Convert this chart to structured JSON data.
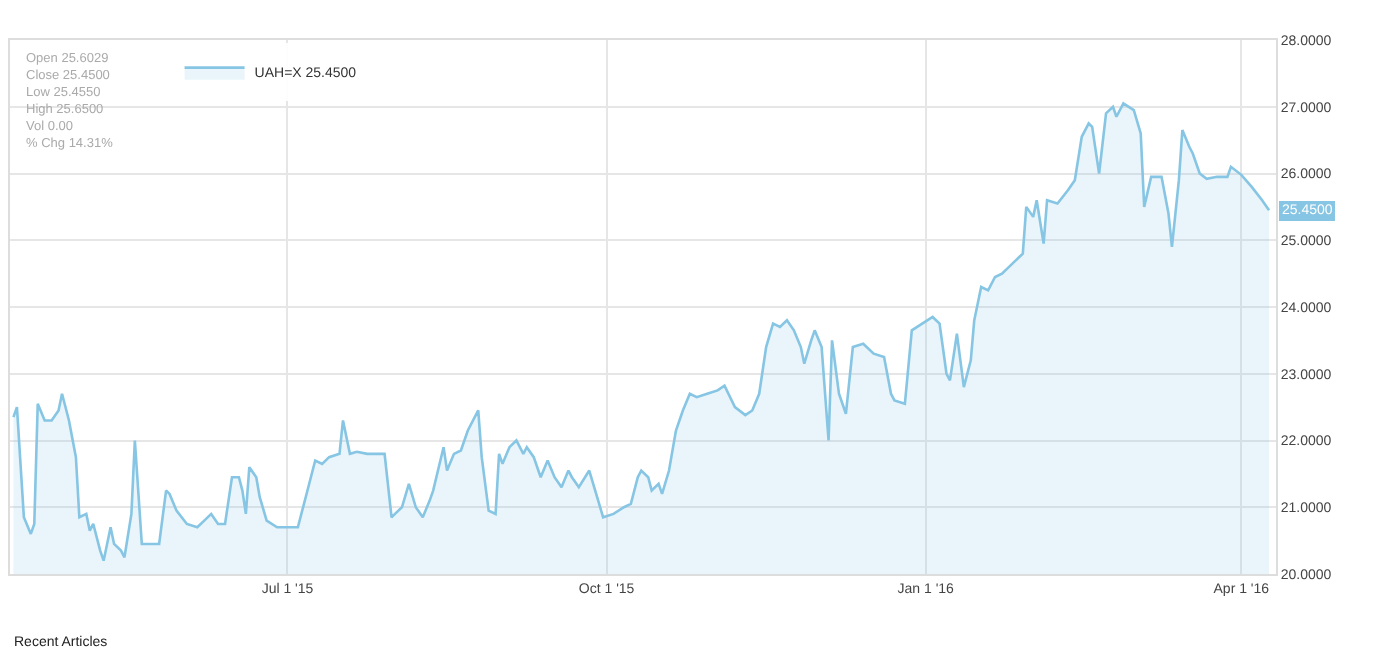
{
  "chart_data": {
    "type": "area",
    "x": [
      "2015-04-13",
      "2015-04-14",
      "2015-04-16",
      "2015-04-18",
      "2015-04-19",
      "2015-04-20",
      "2015-04-22",
      "2015-04-24",
      "2015-04-26",
      "2015-04-27",
      "2015-04-29",
      "2015-05-01",
      "2015-05-02",
      "2015-05-04",
      "2015-05-05",
      "2015-05-06",
      "2015-05-08",
      "2015-05-09",
      "2015-05-11",
      "2015-05-12",
      "2015-05-14",
      "2015-05-15",
      "2015-05-17",
      "2015-05-18",
      "2015-05-20",
      "2015-05-23",
      "2015-05-25",
      "2015-05-27",
      "2015-05-28",
      "2015-05-30",
      "2015-06-02",
      "2015-06-05",
      "2015-06-07",
      "2015-06-09",
      "2015-06-11",
      "2015-06-13",
      "2015-06-15",
      "2015-06-17",
      "2015-06-18",
      "2015-06-19",
      "2015-06-20",
      "2015-06-22",
      "2015-06-23",
      "2015-06-25",
      "2015-06-28",
      "2015-07-02",
      "2015-07-04",
      "2015-07-06",
      "2015-07-07",
      "2015-07-09",
      "2015-07-11",
      "2015-07-13",
      "2015-07-16",
      "2015-07-17",
      "2015-07-19",
      "2015-07-21",
      "2015-07-24",
      "2015-07-29",
      "2015-07-31",
      "2015-08-01",
      "2015-08-03",
      "2015-08-05",
      "2015-08-07",
      "2015-08-09",
      "2015-08-11",
      "2015-08-12",
      "2015-08-15",
      "2015-08-16",
      "2015-08-18",
      "2015-08-20",
      "2015-08-22",
      "2015-08-25",
      "2015-08-26",
      "2015-08-28",
      "2015-08-30",
      "2015-08-31",
      "2015-09-01",
      "2015-09-03",
      "2015-09-05",
      "2015-09-07",
      "2015-09-08",
      "2015-09-10",
      "2015-09-12",
      "2015-09-14",
      "2015-09-16",
      "2015-09-18",
      "2015-09-20",
      "2015-09-21",
      "2015-09-23",
      "2015-09-26",
      "2015-09-28",
      "2015-09-30",
      "2015-10-03",
      "2015-10-06",
      "2015-10-08",
      "2015-10-10",
      "2015-10-11",
      "2015-10-13",
      "2015-10-14",
      "2015-10-16",
      "2015-10-17",
      "2015-10-19",
      "2015-10-20",
      "2015-10-21",
      "2015-10-23",
      "2015-10-25",
      "2015-10-27",
      "2015-10-30",
      "2015-11-02",
      "2015-11-04",
      "2015-11-07",
      "2015-11-10",
      "2015-11-12",
      "2015-11-14",
      "2015-11-16",
      "2015-11-18",
      "2015-11-20",
      "2015-11-22",
      "2015-11-24",
      "2015-11-26",
      "2015-11-27",
      "2015-11-29",
      "2015-11-30",
      "2015-12-02",
      "2015-12-04",
      "2015-12-05",
      "2015-12-07",
      "2015-12-09",
      "2015-12-11",
      "2015-12-14",
      "2015-12-17",
      "2015-12-20",
      "2015-12-22",
      "2015-12-23",
      "2015-12-26",
      "2015-12-28",
      "2015-12-31",
      "2016-01-03",
      "2016-01-05",
      "2016-01-07",
      "2016-01-08",
      "2016-01-10",
      "2016-01-12",
      "2016-01-14",
      "2016-01-15",
      "2016-01-17",
      "2016-01-19",
      "2016-01-21",
      "2016-01-23",
      "2016-01-26",
      "2016-01-29",
      "2016-01-30",
      "2016-02-01",
      "2016-02-02",
      "2016-02-04",
      "2016-02-05",
      "2016-02-08",
      "2016-02-11",
      "2016-02-13",
      "2016-02-15",
      "2016-02-17",
      "2016-02-18",
      "2016-02-20",
      "2016-02-22",
      "2016-02-24",
      "2016-02-25",
      "2016-02-27",
      "2016-03-01",
      "2016-03-03",
      "2016-03-04",
      "2016-03-06",
      "2016-03-09",
      "2016-03-11",
      "2016-03-12",
      "2016-03-14",
      "2016-03-15",
      "2016-03-17",
      "2016-03-18",
      "2016-03-20",
      "2016-03-22",
      "2016-03-25",
      "2016-03-28",
      "2016-03-29",
      "2016-04-01",
      "2016-04-04",
      "2016-04-07",
      "2016-04-09"
    ],
    "series": [
      {
        "name": "UAH=X 25.4500",
        "color": "#86c5e3",
        "values": [
          22.35,
          22.5,
          20.85,
          20.6,
          20.75,
          22.55,
          22.3,
          22.3,
          22.45,
          22.7,
          22.3,
          21.75,
          20.85,
          20.9,
          20.65,
          20.75,
          20.35,
          20.2,
          20.7,
          20.45,
          20.35,
          20.25,
          20.9,
          22.0,
          20.45,
          20.45,
          20.45,
          21.25,
          21.2,
          20.95,
          20.75,
          20.7,
          20.8,
          20.9,
          20.75,
          20.75,
          21.45,
          21.45,
          21.25,
          20.9,
          21.6,
          21.45,
          21.15,
          20.8,
          20.7,
          20.7,
          20.7,
          21.1,
          21.3,
          21.7,
          21.65,
          21.75,
          21.8,
          22.3,
          21.8,
          21.83,
          21.8,
          21.8,
          20.85,
          20.9,
          21.0,
          21.35,
          21.0,
          20.85,
          21.1,
          21.25,
          21.9,
          21.55,
          21.8,
          21.85,
          22.15,
          22.45,
          21.75,
          20.95,
          20.9,
          21.8,
          21.65,
          21.9,
          22.0,
          21.8,
          21.9,
          21.75,
          21.45,
          21.7,
          21.45,
          21.3,
          21.55,
          21.45,
          21.3,
          21.55,
          21.2,
          20.85,
          20.9,
          21.0,
          21.05,
          21.45,
          21.55,
          21.45,
          21.25,
          21.35,
          21.2,
          21.55,
          21.85,
          22.15,
          22.45,
          22.7,
          22.65,
          22.7,
          22.75,
          22.82,
          22.5,
          22.38,
          22.45,
          22.7,
          23.4,
          23.75,
          23.7,
          23.8,
          23.65,
          23.4,
          23.15,
          23.5,
          23.65,
          23.4,
          22.0,
          23.5,
          22.7,
          22.4,
          23.4,
          23.45,
          23.3,
          23.25,
          22.7,
          22.6,
          22.55,
          23.65,
          23.75,
          23.85,
          23.75,
          23.0,
          22.9,
          23.6,
          22.8,
          23.2,
          23.8,
          24.3,
          24.25,
          24.45,
          24.5,
          24.65,
          24.8,
          25.5,
          25.35,
          25.6,
          24.95,
          25.6,
          25.55,
          25.75,
          25.9,
          26.55,
          26.75,
          26.7,
          26.0,
          26.9,
          27.0,
          26.85,
          27.05,
          26.95,
          26.6,
          25.5,
          25.95,
          25.95,
          25.4,
          24.9,
          25.9,
          26.65,
          26.4,
          26.3,
          26.0,
          25.92,
          25.95,
          25.95,
          26.1,
          25.98,
          25.8,
          25.6,
          25.45
        ]
      }
    ],
    "xlim": [
      "2015-04-12",
      "2016-04-11"
    ],
    "xticks": [
      {
        "value": "2015-07-01",
        "label": "Jul 1 '15"
      },
      {
        "value": "2015-10-01",
        "label": "Oct 1 '15"
      },
      {
        "value": "2016-01-01",
        "label": "Jan 1 '16"
      },
      {
        "value": "2016-04-01",
        "label": "Apr 1 '16"
      }
    ],
    "ylim": [
      20,
      28
    ],
    "yticks": [
      {
        "value": 20,
        "label": "20.0000"
      },
      {
        "value": 21,
        "label": "21.0000"
      },
      {
        "value": 22,
        "label": "22.0000"
      },
      {
        "value": 23,
        "label": "23.0000"
      },
      {
        "value": 24,
        "label": "24.0000"
      },
      {
        "value": 25,
        "label": "25.0000"
      },
      {
        "value": 26,
        "label": "26.0000"
      },
      {
        "value": 27,
        "label": "27.0000"
      },
      {
        "value": 28,
        "label": "28.0000"
      }
    ],
    "grid": true,
    "legend": "top left",
    "marker": "none",
    "annotations": [
      "Open 25.6029\nClose 25.4500\nLow 25.4550\nHigh 25.6500\nVol 0.00\n% Chg 14.31%",
      "Recent Articles",
      {
        "text": "25.4500",
        "x": "2016-04-09",
        "y": 25.45
      }
    ]
  }
}
